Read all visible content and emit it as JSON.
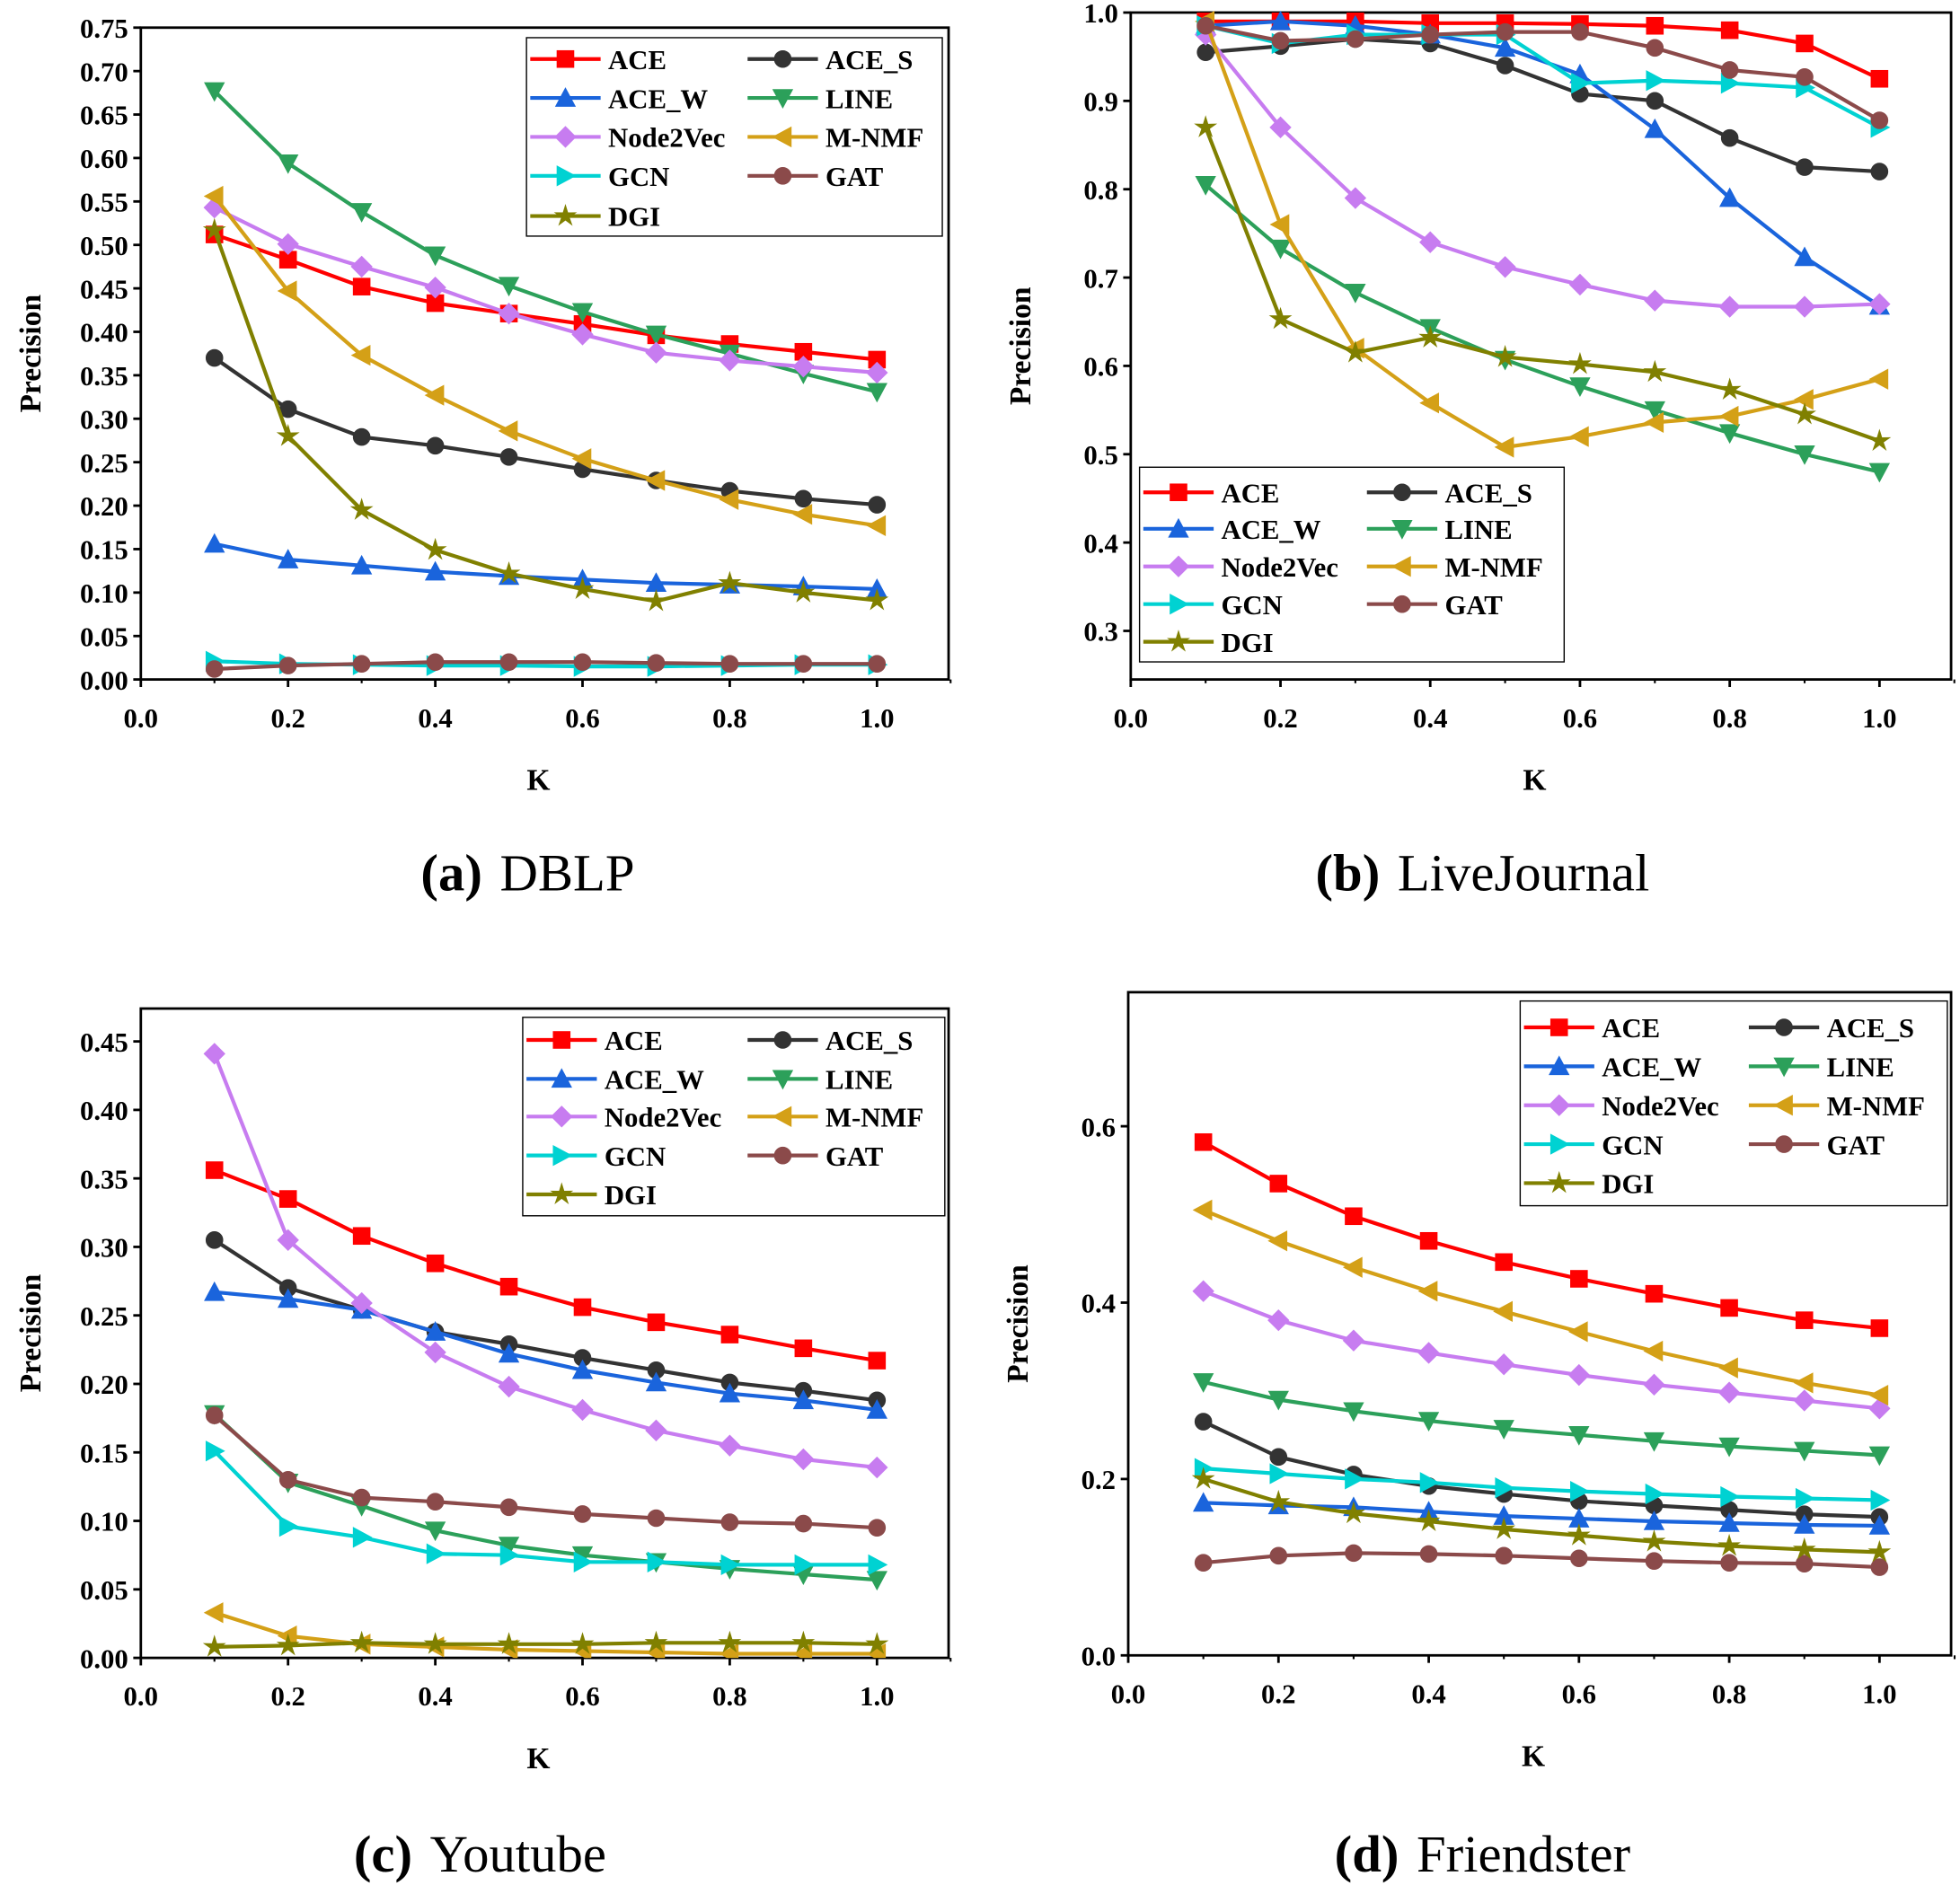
{
  "series_styles": {
    "ACE": {
      "color": "#ff0000",
      "marker": "square"
    },
    "ACE_S": {
      "color": "#333333",
      "marker": "circle"
    },
    "ACE_W": {
      "color": "#1a64dc",
      "marker": "triangle-up"
    },
    "LINE": {
      "color": "#2ca05a",
      "marker": "triangle-down"
    },
    "Node2Vec": {
      "color": "#c77cf0",
      "marker": "diamond"
    },
    "M-NMF": {
      "color": "#d4a017",
      "marker": "triangle-left"
    },
    "GCN": {
      "color": "#00d2d2",
      "marker": "triangle-right"
    },
    "GAT": {
      "color": "#8b4a4a",
      "marker": "circle"
    },
    "DGI": {
      "color": "#808000",
      "marker": "star"
    }
  },
  "chart_data": [
    {
      "type": "line",
      "panel": "(a)",
      "title": "DBLP",
      "xlabel": "K",
      "ylabel": "Precision",
      "xlim": [
        0,
        1.1
      ],
      "ylim": [
        0,
        0.75
      ],
      "xticks": [
        "0.0",
        "0.2",
        "0.4",
        "0.6",
        "0.8",
        "1.0"
      ],
      "yticks": [
        "0.00",
        "0.05",
        "0.10",
        "0.15",
        "0.20",
        "0.25",
        "0.30",
        "0.35",
        "0.40",
        "0.45",
        "0.50",
        "0.55",
        "0.60",
        "0.65",
        "0.70",
        "0.75"
      ],
      "legend": "top-right",
      "x": [
        0.1,
        0.2,
        0.3,
        0.4,
        0.5,
        0.6,
        0.7,
        0.8,
        0.9,
        1.0
      ],
      "series": [
        {
          "name": "ACE",
          "values": [
            0.512,
            0.483,
            0.452,
            0.433,
            0.421,
            0.409,
            0.396,
            0.386,
            0.377,
            0.368
          ]
        },
        {
          "name": "ACE_S",
          "values": [
            0.37,
            0.311,
            0.279,
            0.269,
            0.256,
            0.242,
            0.229,
            0.217,
            0.208,
            0.201
          ]
        },
        {
          "name": "ACE_W",
          "values": [
            0.156,
            0.138,
            0.131,
            0.124,
            0.119,
            0.115,
            0.111,
            0.109,
            0.107,
            0.104
          ]
        },
        {
          "name": "LINE",
          "values": [
            0.677,
            0.594,
            0.538,
            0.488,
            0.453,
            0.423,
            0.397,
            0.375,
            0.352,
            0.331
          ]
        },
        {
          "name": "Node2Vec",
          "values": [
            0.543,
            0.501,
            0.475,
            0.451,
            0.421,
            0.397,
            0.376,
            0.367,
            0.36,
            0.353
          ]
        },
        {
          "name": "M-NMF",
          "values": [
            0.556,
            0.447,
            0.373,
            0.327,
            0.286,
            0.254,
            0.229,
            0.207,
            0.19,
            0.177
          ]
        },
        {
          "name": "GCN",
          "values": [
            0.021,
            0.018,
            0.017,
            0.016,
            0.016,
            0.015,
            0.015,
            0.016,
            0.017,
            0.017
          ]
        },
        {
          "name": "GAT",
          "values": [
            0.012,
            0.016,
            0.018,
            0.02,
            0.02,
            0.02,
            0.019,
            0.018,
            0.018,
            0.018
          ]
        },
        {
          "name": "DGI",
          "values": [
            0.517,
            0.28,
            0.195,
            0.149,
            0.122,
            0.104,
            0.09,
            0.111,
            0.1,
            0.091
          ]
        }
      ]
    },
    {
      "type": "line",
      "panel": "(b)",
      "title": "LiveJournal",
      "xlabel": "K",
      "ylabel": "Precision",
      "xlim": [
        0,
        1.1
      ],
      "ylim": [
        0.245,
        1.0
      ],
      "xticks": [
        "0.0",
        "0.2",
        "0.4",
        "0.6",
        "0.8",
        "1.0"
      ],
      "yticks": [
        "0.3",
        "0.4",
        "0.5",
        "0.6",
        "0.7",
        "0.8",
        "0.9",
        "1.0"
      ],
      "legend": "bottom-left",
      "x": [
        0.1,
        0.2,
        0.3,
        0.4,
        0.5,
        0.6,
        0.7,
        0.8,
        0.9,
        1.0
      ],
      "series": [
        {
          "name": "ACE",
          "values": [
            0.99,
            0.99,
            0.99,
            0.988,
            0.988,
            0.987,
            0.985,
            0.98,
            0.965,
            0.925
          ]
        },
        {
          "name": "ACE_S",
          "values": [
            0.955,
            0.962,
            0.97,
            0.965,
            0.94,
            0.908,
            0.9,
            0.858,
            0.825,
            0.82
          ]
        },
        {
          "name": "ACE_W",
          "values": [
            0.985,
            0.99,
            0.985,
            0.975,
            0.96,
            0.93,
            0.868,
            0.79,
            0.723,
            0.668
          ]
        },
        {
          "name": "LINE",
          "values": [
            0.805,
            0.733,
            0.683,
            0.643,
            0.607,
            0.577,
            0.55,
            0.524,
            0.5,
            0.48
          ]
        },
        {
          "name": "Node2Vec",
          "values": [
            0.975,
            0.87,
            0.79,
            0.74,
            0.712,
            0.692,
            0.674,
            0.667,
            0.667,
            0.67
          ]
        },
        {
          "name": "M-NMF",
          "values": [
            0.99,
            0.76,
            0.62,
            0.558,
            0.508,
            0.52,
            0.536,
            0.543,
            0.562,
            0.585
          ]
        },
        {
          "name": "GCN",
          "values": [
            0.985,
            0.965,
            0.975,
            0.975,
            0.975,
            0.92,
            0.923,
            0.92,
            0.915,
            0.87
          ]
        },
        {
          "name": "GAT",
          "values": [
            0.985,
            0.968,
            0.97,
            0.975,
            0.978,
            0.978,
            0.96,
            0.935,
            0.927,
            0.878
          ]
        },
        {
          "name": "DGI",
          "values": [
            0.87,
            0.653,
            0.615,
            0.632,
            0.61,
            0.602,
            0.593,
            0.573,
            0.545,
            0.515
          ]
        }
      ]
    },
    {
      "type": "line",
      "panel": "(c)",
      "title": "Youtube",
      "xlabel": "K",
      "ylabel": "Precision",
      "xlim": [
        0,
        1.1
      ],
      "ylim": [
        0,
        0.474
      ],
      "xticks": [
        "0.0",
        "0.2",
        "0.4",
        "0.6",
        "0.8",
        "1.0"
      ],
      "yticks": [
        "0.00",
        "0.05",
        "0.10",
        "0.15",
        "0.20",
        "0.25",
        "0.30",
        "0.35",
        "0.40",
        "0.45"
      ],
      "legend": "top-right",
      "x": [
        0.1,
        0.2,
        0.3,
        0.4,
        0.5,
        0.6,
        0.7,
        0.8,
        0.9,
        1.0
      ],
      "series": [
        {
          "name": "ACE",
          "values": [
            0.356,
            0.335,
            0.308,
            0.288,
            0.271,
            0.256,
            0.245,
            0.236,
            0.226,
            0.217
          ]
        },
        {
          "name": "ACE_S",
          "values": [
            0.305,
            0.27,
            0.254,
            0.238,
            0.229,
            0.219,
            0.21,
            0.201,
            0.195,
            0.188
          ]
        },
        {
          "name": "ACE_W",
          "values": [
            0.267,
            0.262,
            0.254,
            0.238,
            0.222,
            0.21,
            0.201,
            0.193,
            0.188,
            0.181
          ]
        },
        {
          "name": "LINE",
          "values": [
            0.178,
            0.128,
            0.111,
            0.093,
            0.082,
            0.075,
            0.07,
            0.065,
            0.061,
            0.057
          ]
        },
        {
          "name": "Node2Vec",
          "values": [
            0.441,
            0.305,
            0.259,
            0.223,
            0.198,
            0.181,
            0.166,
            0.155,
            0.145,
            0.139
          ]
        },
        {
          "name": "M-NMF",
          "values": [
            0.033,
            0.016,
            0.01,
            0.008,
            0.006,
            0.005,
            0.004,
            0.003,
            0.003,
            0.003
          ]
        },
        {
          "name": "GCN",
          "values": [
            0.151,
            0.096,
            0.088,
            0.076,
            0.075,
            0.07,
            0.07,
            0.068,
            0.068,
            0.068
          ]
        },
        {
          "name": "GAT",
          "values": [
            0.177,
            0.13,
            0.117,
            0.114,
            0.11,
            0.105,
            0.102,
            0.099,
            0.098,
            0.095
          ]
        },
        {
          "name": "DGI",
          "values": [
            0.008,
            0.009,
            0.011,
            0.01,
            0.01,
            0.01,
            0.011,
            0.011,
            0.011,
            0.01
          ]
        }
      ]
    },
    {
      "type": "line",
      "panel": "(d)",
      "title": "Friendster",
      "xlabel": "K",
      "ylabel": "Precision",
      "xlim": [
        0,
        1.1
      ],
      "ylim": [
        0,
        0.752
      ],
      "xticks": [
        "0.0",
        "0.2",
        "0.4",
        "0.6",
        "0.8",
        "1.0"
      ],
      "yticks": [
        "0.0",
        "0.2",
        "0.4",
        "0.6"
      ],
      "legend": "top-right",
      "x": [
        0.1,
        0.2,
        0.3,
        0.4,
        0.5,
        0.6,
        0.7,
        0.8,
        0.9,
        1.0
      ],
      "series": [
        {
          "name": "ACE",
          "values": [
            0.582,
            0.535,
            0.498,
            0.47,
            0.446,
            0.427,
            0.41,
            0.394,
            0.38,
            0.371
          ]
        },
        {
          "name": "ACE_S",
          "values": [
            0.265,
            0.225,
            0.205,
            0.192,
            0.183,
            0.175,
            0.17,
            0.165,
            0.16,
            0.157
          ]
        },
        {
          "name": "ACE_W",
          "values": [
            0.173,
            0.17,
            0.168,
            0.163,
            0.158,
            0.155,
            0.152,
            0.15,
            0.148,
            0.147
          ]
        },
        {
          "name": "LINE",
          "values": [
            0.31,
            0.29,
            0.277,
            0.266,
            0.257,
            0.25,
            0.243,
            0.237,
            0.232,
            0.227
          ]
        },
        {
          "name": "Node2Vec",
          "values": [
            0.413,
            0.38,
            0.357,
            0.343,
            0.33,
            0.318,
            0.307,
            0.298,
            0.289,
            0.28
          ]
        },
        {
          "name": "M-NMF",
          "values": [
            0.505,
            0.47,
            0.44,
            0.413,
            0.39,
            0.367,
            0.345,
            0.326,
            0.309,
            0.295
          ]
        },
        {
          "name": "GCN",
          "values": [
            0.212,
            0.206,
            0.2,
            0.196,
            0.19,
            0.186,
            0.183,
            0.18,
            0.178,
            0.176
          ]
        },
        {
          "name": "GAT",
          "values": [
            0.105,
            0.113,
            0.116,
            0.115,
            0.113,
            0.11,
            0.107,
            0.105,
            0.104,
            0.1
          ]
        },
        {
          "name": "DGI",
          "values": [
            0.2,
            0.174,
            0.161,
            0.152,
            0.143,
            0.136,
            0.129,
            0.124,
            0.12,
            0.117
          ]
        }
      ]
    }
  ]
}
